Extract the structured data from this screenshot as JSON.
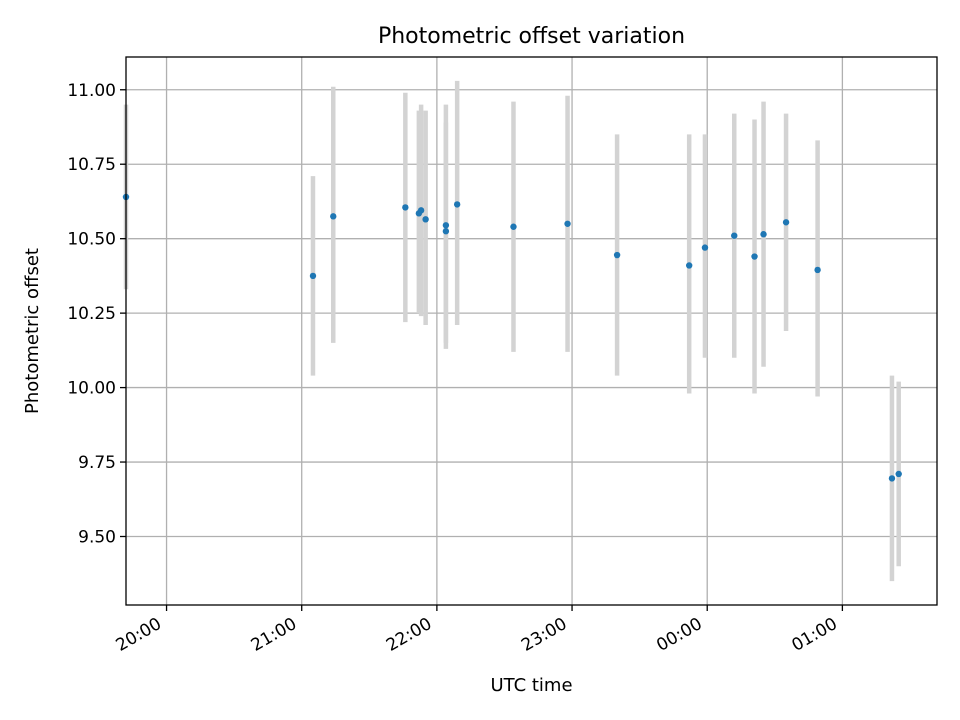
{
  "chart_data": {
    "type": "scatter",
    "title": "Photometric offset variation",
    "xlabel": "UTC time",
    "ylabel": "Photometric offset",
    "x_ticks": [
      "20:00",
      "21:00",
      "22:00",
      "23:00",
      "00:00",
      "01:00"
    ],
    "y_ticks": [
      "9.50",
      "9.75",
      "10.00",
      "10.25",
      "10.50",
      "10.75",
      "11.00"
    ],
    "ylim": [
      9.27,
      11.11
    ],
    "xlim": [
      "19:42",
      "01:42"
    ],
    "grid": true,
    "point_color": "#1f77b4",
    "errorbar_color": "#d3d3d3",
    "points": [
      {
        "time": "19:42",
        "y": 10.64,
        "ylow": 10.33,
        "yhigh": 10.95
      },
      {
        "time": "21:05",
        "y": 10.375,
        "ylow": 10.04,
        "yhigh": 10.71
      },
      {
        "time": "21:14",
        "y": 10.575,
        "ylow": 10.15,
        "yhigh": 11.01
      },
      {
        "time": "21:46",
        "y": 10.605,
        "ylow": 10.22,
        "yhigh": 10.99
      },
      {
        "time": "21:52",
        "y": 10.585,
        "ylow": 10.25,
        "yhigh": 10.93
      },
      {
        "time": "21:53",
        "y": 10.595,
        "ylow": 10.24,
        "yhigh": 10.95
      },
      {
        "time": "21:55",
        "y": 10.565,
        "ylow": 10.21,
        "yhigh": 10.93
      },
      {
        "time": "22:04",
        "y": 10.545,
        "ylow": 10.13,
        "yhigh": 10.95
      },
      {
        "time": "22:04",
        "y": 10.525,
        "ylow": 10.15,
        "yhigh": 10.89
      },
      {
        "time": "22:09",
        "y": 10.615,
        "ylow": 10.21,
        "yhigh": 11.03
      },
      {
        "time": "22:34",
        "y": 10.54,
        "ylow": 10.12,
        "yhigh": 10.96
      },
      {
        "time": "22:58",
        "y": 10.55,
        "ylow": 10.12,
        "yhigh": 10.98
      },
      {
        "time": "23:20",
        "y": 10.445,
        "ylow": 10.04,
        "yhigh": 10.85
      },
      {
        "time": "23:52",
        "y": 10.41,
        "ylow": 9.98,
        "yhigh": 10.85
      },
      {
        "time": "23:59",
        "y": 10.47,
        "ylow": 10.1,
        "yhigh": 10.85
      },
      {
        "time": "00:12",
        "y": 10.51,
        "ylow": 10.1,
        "yhigh": 10.92
      },
      {
        "time": "00:21",
        "y": 10.44,
        "ylow": 9.98,
        "yhigh": 10.9
      },
      {
        "time": "00:25",
        "y": 10.515,
        "ylow": 10.07,
        "yhigh": 10.96
      },
      {
        "time": "00:35",
        "y": 10.555,
        "ylow": 10.19,
        "yhigh": 10.92
      },
      {
        "time": "00:49",
        "y": 10.395,
        "ylow": 9.97,
        "yhigh": 10.83
      },
      {
        "time": "01:22",
        "y": 9.695,
        "ylow": 9.35,
        "yhigh": 10.04
      },
      {
        "time": "01:25",
        "y": 9.71,
        "ylow": 9.4,
        "yhigh": 10.02
      }
    ]
  }
}
